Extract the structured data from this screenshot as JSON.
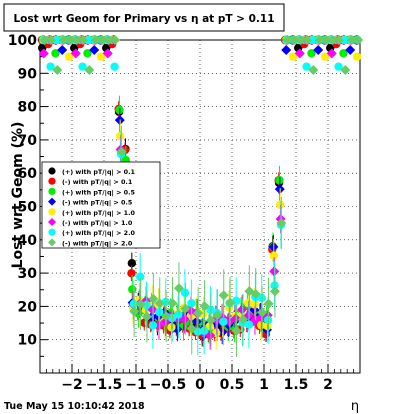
{
  "footer": {
    "timestamp": "Tue May 15 10:10:42 2018"
  },
  "chart_data": {
    "type": "scatter",
    "title": "Lost wrt Geom for Primary vs   η at pT > 0.11",
    "xlabel": "η",
    "ylabel": "Lost wrt Geom (%)",
    "xlim": [
      -2.5,
      2.5
    ],
    "ylim": [
      0,
      100
    ],
    "x_ticks": [
      -2,
      -1.5,
      -1,
      -0.5,
      0,
      0.5,
      1,
      1.5,
      2
    ],
    "x_tick_labels": [
      "−2",
      "−1.5",
      "−1",
      "−0.5",
      "0",
      "0.5",
      "1",
      "1.5",
      "2"
    ],
    "y_ticks": [
      10,
      20,
      30,
      40,
      50,
      60,
      70,
      80,
      90,
      100
    ],
    "y_tick_labels": [
      "10",
      "20",
      "30",
      "40",
      "50",
      "60",
      "70",
      "80",
      "90",
      "100"
    ],
    "grid": true,
    "legend_position": "left-middle",
    "series": [
      {
        "name": "(+) with pT/|q| > 0.1",
        "color": "#000000",
        "marker": "circle",
        "offset": 1,
        "y_shift": 2.0,
        "noise": 1.2
      },
      {
        "name": "(-) with pT/|q| > 0.1",
        "color": "#ff0000",
        "marker": "circle",
        "offset": 0,
        "y_shift": 0.0,
        "noise": 0.6
      },
      {
        "name": "(+) with pT/|q| > 0.5",
        "color": "#00ee00",
        "marker": "circle",
        "offset": 2,
        "y_shift": 3.0,
        "noise": 2.0
      },
      {
        "name": "(-) with pT/|q| > 0.5",
        "color": "#0000ff",
        "marker": "diamond",
        "offset": 3,
        "y_shift": 2.5,
        "noise": 1.5
      },
      {
        "name": "(+) with pT/|q| > 1.0",
        "color": "#ffee00",
        "marker": "circle",
        "offset": 4,
        "y_shift": 4.0,
        "noise": 2.5
      },
      {
        "name": "(-) with pT/|q| > 1.0",
        "color": "#ff00ff",
        "marker": "diamond",
        "offset": 5,
        "y_shift": 3.0,
        "noise": 2.0
      },
      {
        "name": "(+) with pT/|q| > 2.0",
        "color": "#00ffff",
        "marker": "circle",
        "offset": 6,
        "y_shift": 5.0,
        "noise": 4.0
      },
      {
        "name": "(-) with pT/|q| > 2.0",
        "color": "#66cc66",
        "marker": "diamond",
        "offset": 7,
        "y_shift": 6.0,
        "noise": 4.5
      }
    ],
    "x": [
      -2.45,
      -2.35,
      -2.25,
      -2.15,
      -2.05,
      -1.95,
      -1.85,
      -1.75,
      -1.65,
      -1.55,
      -1.45,
      -1.35,
      -1.25,
      -1.15,
      -1.05,
      -0.95,
      -0.85,
      -0.75,
      -0.65,
      -0.55,
      -0.45,
      -0.35,
      -0.25,
      -0.15,
      -0.05,
      0.05,
      0.15,
      0.25,
      0.35,
      0.45,
      0.55,
      0.65,
      0.75,
      0.85,
      0.95,
      1.05,
      1.15,
      1.25,
      1.35,
      1.45,
      1.55,
      1.65,
      1.75,
      1.85,
      1.95,
      2.05,
      2.15,
      2.25,
      2.35,
      2.45
    ],
    "base_curve": [
      100,
      100,
      100,
      100,
      100,
      100,
      100,
      100,
      100,
      100,
      100,
      100,
      80,
      66,
      30,
      18,
      16,
      15,
      14,
      14,
      13,
      13,
      14,
      14,
      13,
      11,
      11,
      12,
      12,
      13,
      13,
      14,
      15,
      16,
      14,
      12,
      41,
      59,
      100,
      100,
      100,
      100,
      100,
      100,
      100,
      100,
      100,
      100,
      100,
      100
    ]
  }
}
